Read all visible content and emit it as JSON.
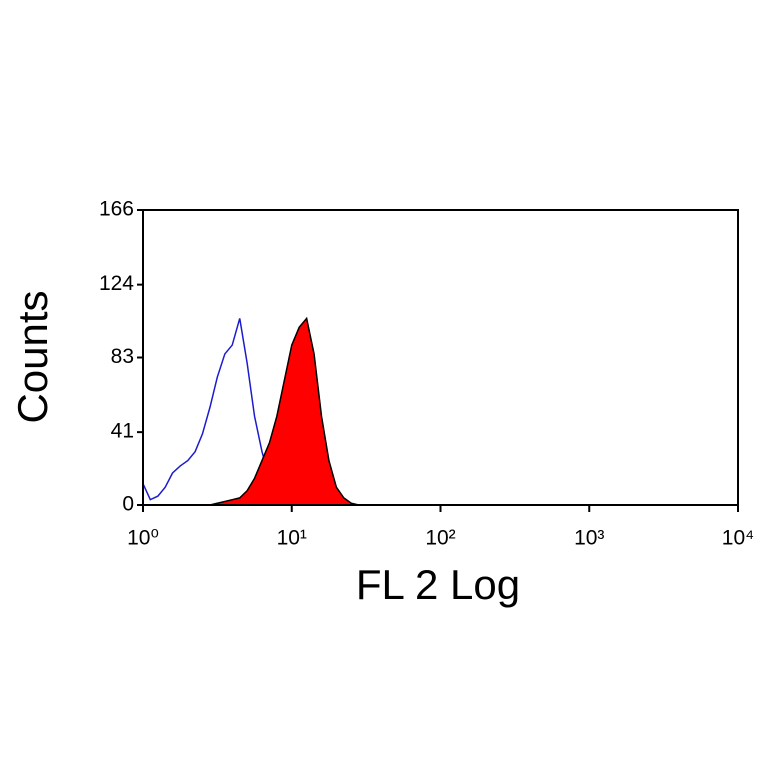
{
  "chart_data": {
    "type": "histogram",
    "xscale": "log",
    "x_label": "FL 2 Log",
    "y_label": "Counts",
    "xlim": [
      1,
      10000
    ],
    "xticks": [
      {
        "value": 1,
        "label": "10⁰"
      },
      {
        "value": 10,
        "label": "10¹"
      },
      {
        "value": 100,
        "label": "10²"
      },
      {
        "value": 1000,
        "label": "10³"
      },
      {
        "value": 10000,
        "label": "10⁴"
      }
    ],
    "ylim": [
      0,
      166
    ],
    "yticks": [
      0,
      41,
      83,
      124,
      166
    ],
    "x": [
      1,
      1.12,
      1.26,
      1.41,
      1.58,
      1.78,
      2,
      2.24,
      2.51,
      2.82,
      3.16,
      3.55,
      3.98,
      4.47,
      5.01,
      5.62,
      6.31,
      7.08,
      7.94,
      8.91,
      10,
      11.22,
      12.59,
      14.13,
      15.85,
      17.78,
      19.95,
      22.39,
      25.12,
      28.18,
      31.62
    ],
    "series": [
      {
        "color": "#1c1ccc",
        "filled": false,
        "values": [
          12,
          3,
          5,
          10,
          18,
          22,
          25,
          30,
          40,
          55,
          72,
          85,
          90,
          105,
          80,
          50,
          30,
          15,
          8,
          4,
          2,
          1,
          0,
          0,
          0,
          0,
          0,
          0,
          0,
          0,
          0
        ]
      },
      {
        "color": "#ff0000",
        "filled": true,
        "values": [
          0,
          0,
          0,
          0,
          0,
          0,
          0,
          0,
          0,
          0,
          1,
          2,
          3,
          4,
          8,
          15,
          25,
          35,
          50,
          70,
          90,
          100,
          105,
          85,
          50,
          25,
          10,
          4,
          1,
          0,
          0
        ]
      }
    ]
  }
}
